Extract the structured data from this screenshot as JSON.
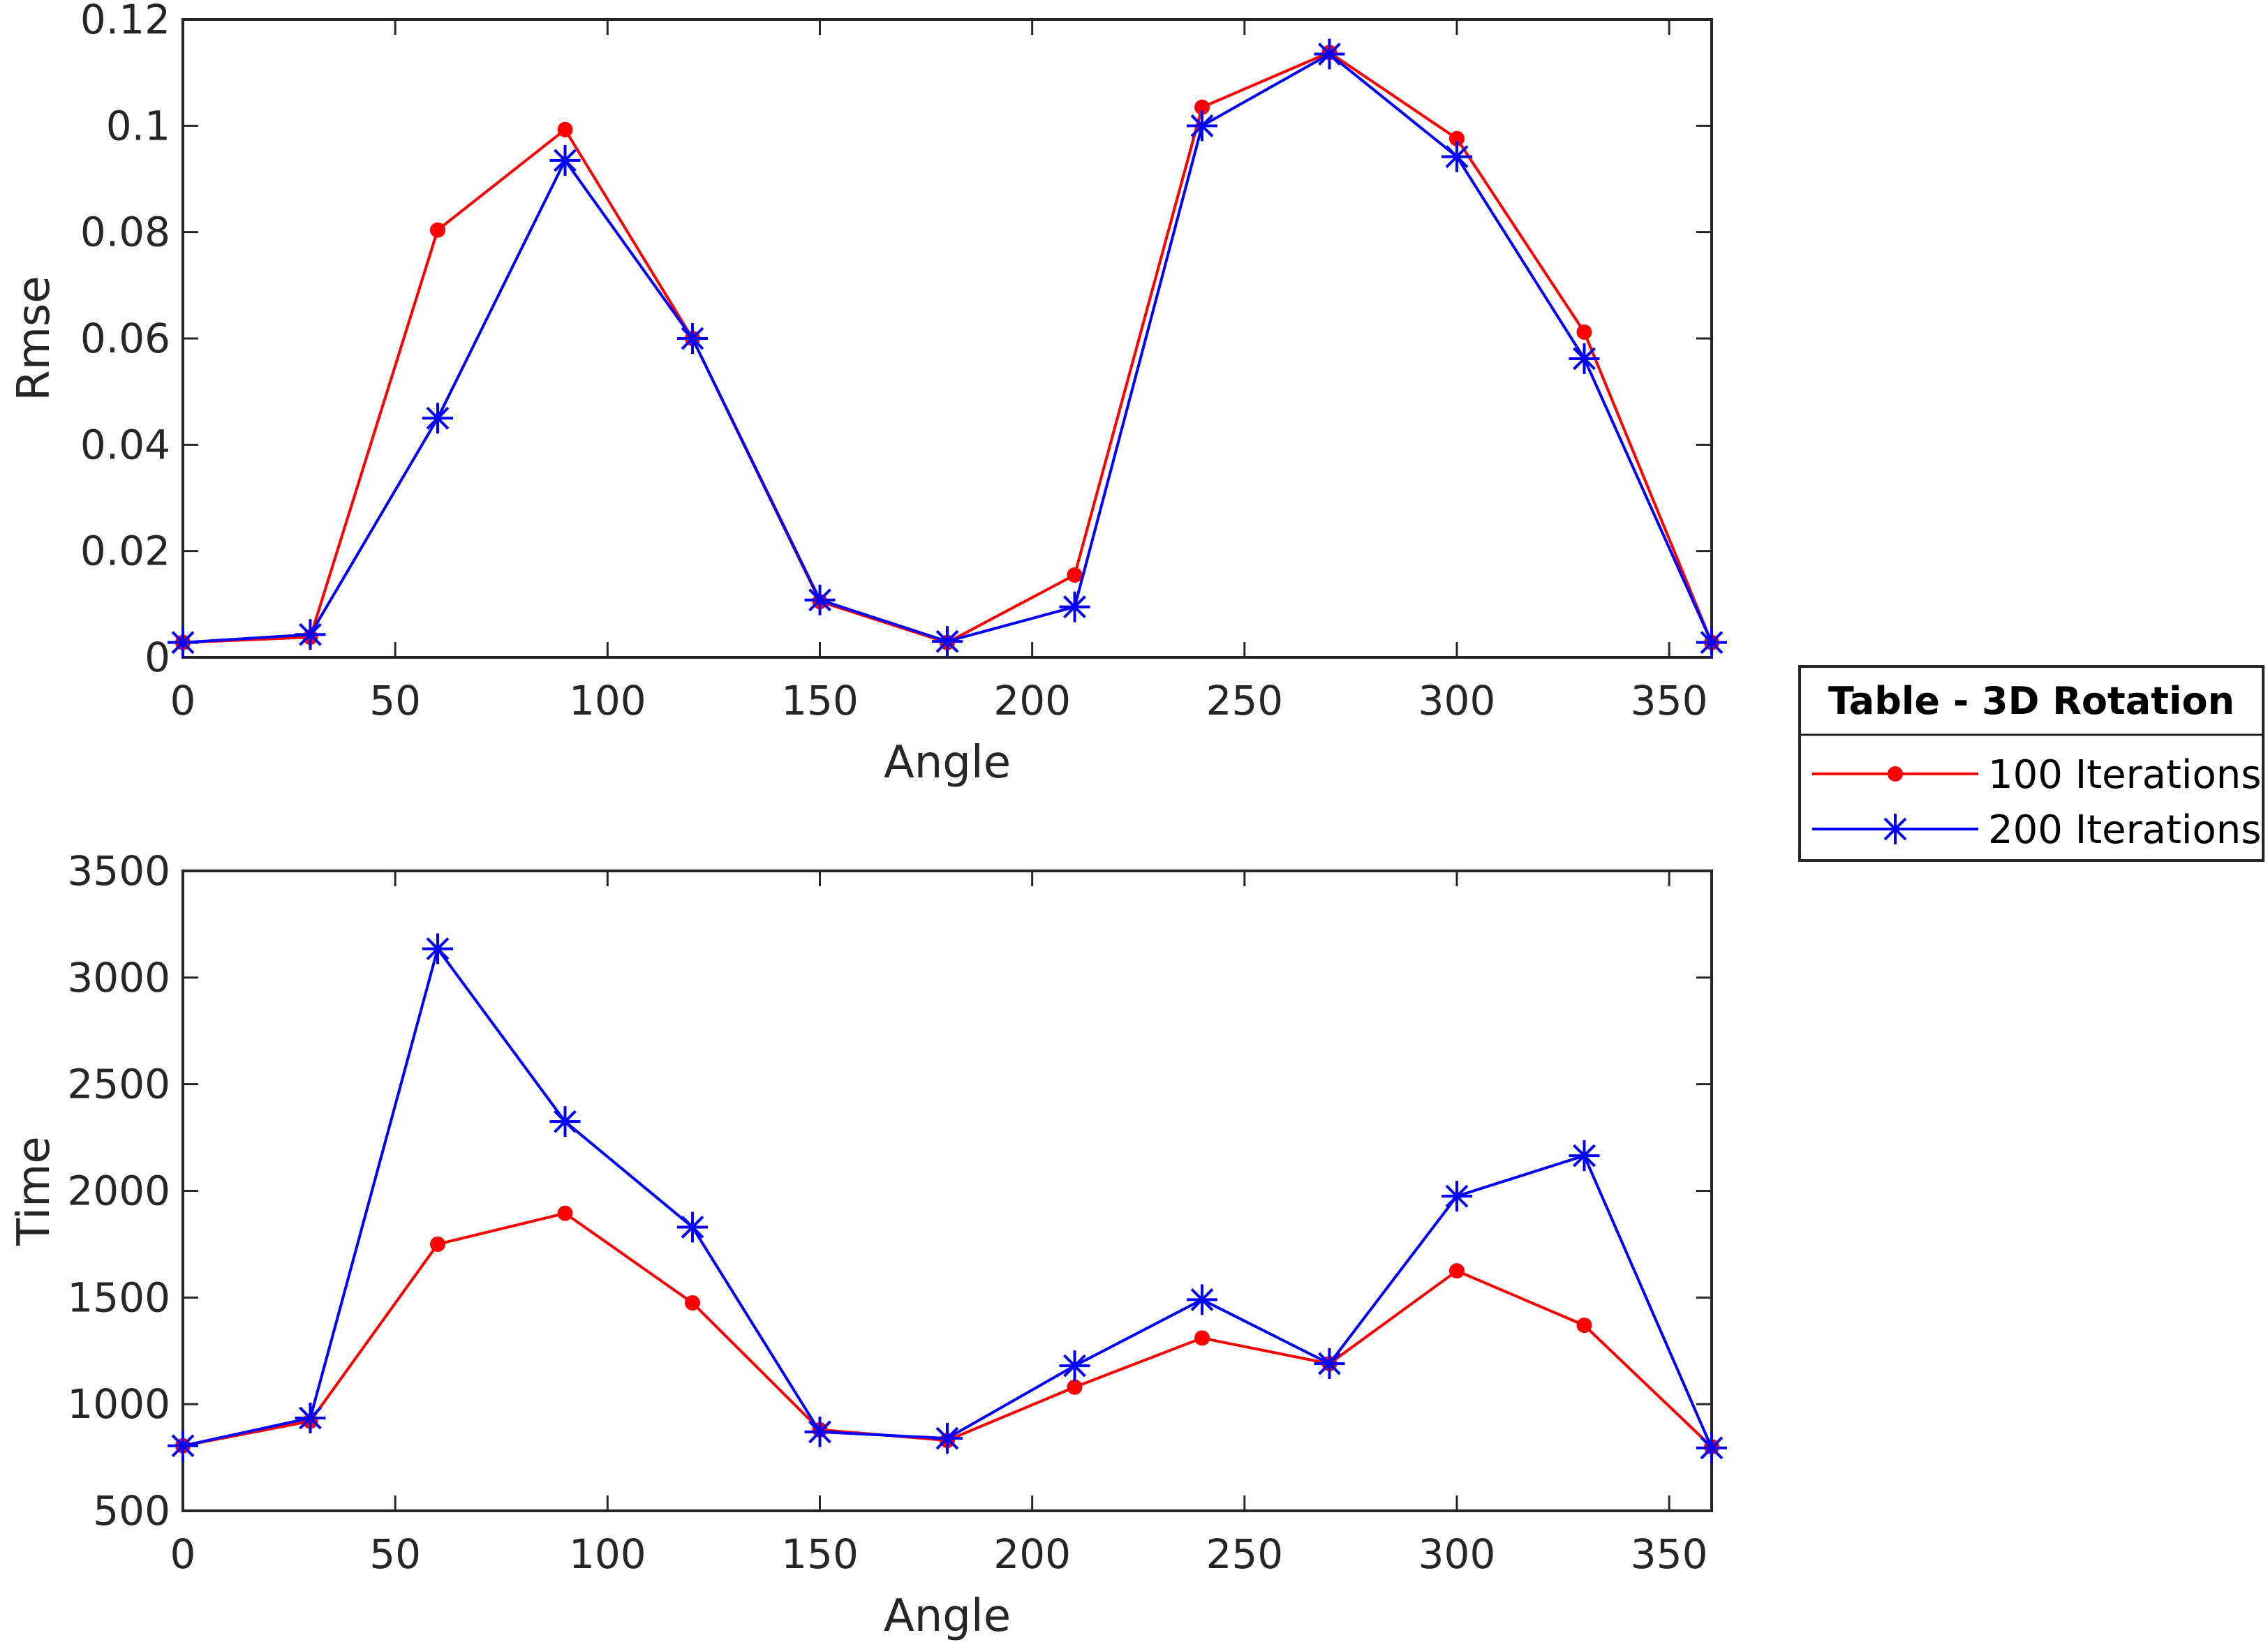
{
  "chart_data": [
    {
      "type": "line",
      "xlabel": "Angle",
      "ylabel": "Rmse",
      "xlim": [
        0,
        360
      ],
      "ylim": [
        0,
        0.12
      ],
      "xticks": [
        0,
        50,
        100,
        150,
        200,
        250,
        300,
        350
      ],
      "yticks": [
        0,
        0.02,
        0.04,
        0.06,
        0.08,
        0.1,
        0.12
      ],
      "ytick_labels": [
        "0",
        "0.02",
        "0.04",
        "0.06",
        "0.08",
        "0.1",
        "0.12"
      ],
      "grid": false,
      "x": [
        0,
        30,
        60,
        90,
        120,
        150,
        180,
        210,
        240,
        270,
        300,
        330,
        360
      ],
      "series": [
        {
          "name": "100 Iterations",
          "color": "#ff0000",
          "marker": "dot",
          "values": [
            0.0028,
            0.0038,
            0.0804,
            0.0993,
            0.06,
            0.0105,
            0.0028,
            0.0155,
            0.1035,
            0.1138,
            0.0976,
            0.0612,
            0.0028
          ]
        },
        {
          "name": "200 Iterations",
          "color": "#0000ff",
          "marker": "star",
          "values": [
            0.0028,
            0.0043,
            0.045,
            0.0935,
            0.06,
            0.0108,
            0.003,
            0.0095,
            0.1,
            0.1135,
            0.0942,
            0.0562,
            0.0028
          ]
        }
      ]
    },
    {
      "type": "line",
      "xlabel": "Angle",
      "ylabel": "Time",
      "xlim": [
        0,
        360
      ],
      "ylim": [
        500,
        3500
      ],
      "xticks": [
        0,
        50,
        100,
        150,
        200,
        250,
        300,
        350
      ],
      "yticks": [
        500,
        1000,
        1500,
        2000,
        2500,
        3000,
        3500
      ],
      "ytick_labels": [
        "500",
        "1000",
        "1500",
        "2000",
        "2500",
        "3000",
        "3500"
      ],
      "grid": false,
      "x": [
        0,
        30,
        60,
        90,
        120,
        150,
        180,
        210,
        240,
        270,
        300,
        330,
        360
      ],
      "series": [
        {
          "name": "100 Iterations",
          "color": "#ff0000",
          "marker": "dot",
          "values": [
            805,
            920,
            1750,
            1895,
            1475,
            880,
            830,
            1080,
            1310,
            1190,
            1625,
            1370,
            800
          ]
        },
        {
          "name": "200 Iterations",
          "color": "#0000ff",
          "marker": "star",
          "values": [
            805,
            935,
            3135,
            2325,
            1830,
            870,
            840,
            1180,
            1490,
            1190,
            1975,
            2165,
            795
          ]
        }
      ]
    }
  ],
  "legend": {
    "title": "Table - 3D Rotation",
    "entries": [
      {
        "label": "100 Iterations",
        "color": "#ff0000",
        "marker": "dot"
      },
      {
        "label": "200 Iterations",
        "color": "#0000ff",
        "marker": "star"
      }
    ],
    "placement": "right, between plots"
  }
}
